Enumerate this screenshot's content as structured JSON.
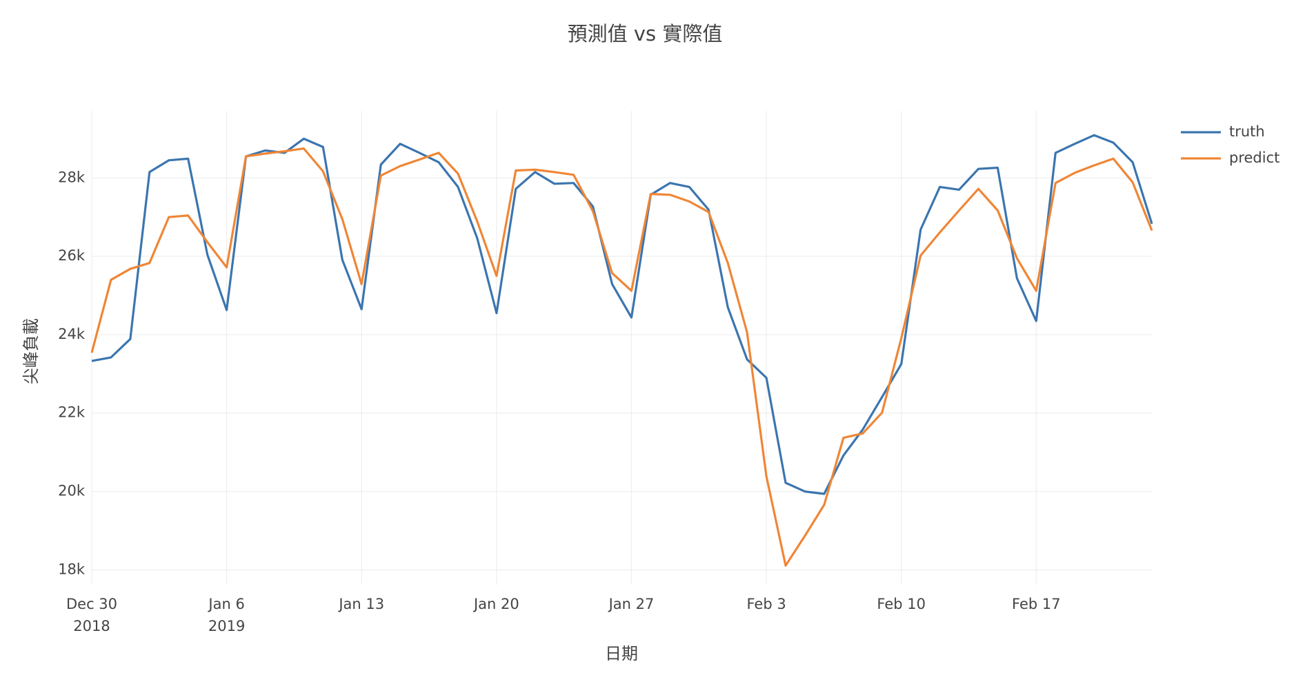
{
  "chart_data": {
    "type": "line",
    "title": "預測值 vs 實際值",
    "xlabel": "日期",
    "ylabel": "尖峰負載",
    "x": [
      "2018-12-30",
      "2018-12-31",
      "2019-01-01",
      "2019-01-02",
      "2019-01-03",
      "2019-01-04",
      "2019-01-05",
      "2019-01-06",
      "2019-01-07",
      "2019-01-08",
      "2019-01-09",
      "2019-01-10",
      "2019-01-11",
      "2019-01-12",
      "2019-01-13",
      "2019-01-14",
      "2019-01-15",
      "2019-01-16",
      "2019-01-17",
      "2019-01-18",
      "2019-01-19",
      "2019-01-20",
      "2019-01-21",
      "2019-01-22",
      "2019-01-23",
      "2019-01-24",
      "2019-01-25",
      "2019-01-26",
      "2019-01-27",
      "2019-01-28",
      "2019-01-29",
      "2019-01-30",
      "2019-01-31",
      "2019-02-01",
      "2019-02-02",
      "2019-02-03",
      "2019-02-04",
      "2019-02-05",
      "2019-02-06",
      "2019-02-07",
      "2019-02-08",
      "2019-02-09",
      "2019-02-10",
      "2019-02-11",
      "2019-02-12",
      "2019-02-13",
      "2019-02-14",
      "2019-02-15",
      "2019-02-16",
      "2019-02-17",
      "2019-02-18",
      "2019-02-19",
      "2019-02-20",
      "2019-02-21",
      "2019-02-22",
      "2019-02-23"
    ],
    "series": [
      {
        "name": "truth",
        "color": "#3b75af",
        "values": [
          23330,
          23420,
          23890,
          28150,
          28450,
          28490,
          26040,
          24630,
          28550,
          28700,
          28640,
          29000,
          28790,
          25910,
          24650,
          28340,
          28870,
          28640,
          28400,
          27770,
          26460,
          24550,
          27720,
          28150,
          27850,
          27870,
          27270,
          25290,
          24440,
          27570,
          27870,
          27770,
          27190,
          24700,
          23370,
          22900,
          20220,
          20000,
          19940,
          20920,
          21580,
          22410,
          23250,
          26680,
          27770,
          27700,
          28230,
          28260,
          25440,
          24350,
          28640,
          28870,
          29090,
          28900,
          28400,
          26830
        ]
      },
      {
        "name": "predict",
        "color": "#ef8636",
        "values": [
          23540,
          25400,
          25680,
          25830,
          27000,
          27040,
          26360,
          25720,
          28550,
          28620,
          28680,
          28750,
          28170,
          26950,
          25290,
          28060,
          28300,
          28470,
          28640,
          28110,
          26890,
          25500,
          28190,
          28210,
          28150,
          28080,
          27150,
          25570,
          25120,
          27590,
          27570,
          27400,
          27130,
          25830,
          24060,
          20390,
          18110,
          18870,
          19660,
          21370,
          21480,
          22010,
          23910,
          26020,
          26610,
          27170,
          27720,
          27170,
          25950,
          25120,
          27870,
          28130,
          28320,
          28490,
          27890,
          26660
        ]
      }
    ],
    "xlim": [
      "2018-12-30",
      "2019-02-23"
    ],
    "xticks": [
      {
        "value": "2018-12-30",
        "label": "Dec 30\n2018"
      },
      {
        "value": "2019-01-06",
        "label": "Jan 6\n2019"
      },
      {
        "value": "2019-01-13",
        "label": "Jan 13"
      },
      {
        "value": "2019-01-20",
        "label": "Jan 20"
      },
      {
        "value": "2019-01-27",
        "label": "Jan 27"
      },
      {
        "value": "2019-02-03",
        "label": "Feb 3"
      },
      {
        "value": "2019-02-10",
        "label": "Feb 10"
      },
      {
        "value": "2019-02-17",
        "label": "Feb 17"
      }
    ],
    "ylim": [
      17620,
      29710
    ],
    "yticks": [
      {
        "value": 18000,
        "label": "18k"
      },
      {
        "value": 20000,
        "label": "20k"
      },
      {
        "value": 22000,
        "label": "22k"
      },
      {
        "value": 24000,
        "label": "24k"
      },
      {
        "value": 26000,
        "label": "26k"
      },
      {
        "value": 28000,
        "label": "28k"
      }
    ],
    "grid": true,
    "legend": "top-right"
  }
}
